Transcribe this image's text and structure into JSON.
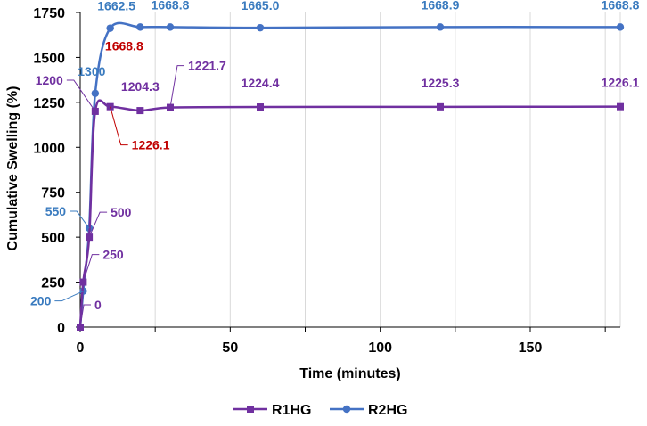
{
  "chart_data": {
    "type": "line",
    "title": "",
    "xlabel": "Time (minutes)",
    "ylabel": "Cumulative Swelling (%)",
    "xlim": [
      0,
      180
    ],
    "ylim": [
      0,
      1750
    ],
    "xticks": [
      0,
      50,
      100,
      150
    ],
    "xticks_minor": [
      25,
      75,
      125,
      175
    ],
    "yticks": [
      0,
      250,
      500,
      750,
      1000,
      1250,
      1500,
      1750
    ],
    "grid": "vertical",
    "legend_position": "bottom",
    "series": [
      {
        "name": "R1HG",
        "color": "#7030a0",
        "marker": "square",
        "x": [
          0,
          1,
          3,
          5,
          10,
          20,
          30,
          60,
          120,
          180
        ],
        "y": [
          0,
          250,
          500,
          1200,
          1226.1,
          1204.3,
          1221.7,
          1224.4,
          1225.3,
          1226.1
        ],
        "labels": [
          {
            "text": "0",
            "color": "#7030a0"
          },
          {
            "text": "250",
            "color": "#7030a0"
          },
          {
            "text": "500",
            "color": "#7030a0"
          },
          {
            "text": "1200",
            "color": "#7030a0"
          },
          {
            "text": "1226.1",
            "color": "#c00000"
          },
          {
            "text": "1204.3",
            "color": "#7030a0"
          },
          {
            "text": "1221.7",
            "color": "#7030a0"
          },
          {
            "text": "1224.4",
            "color": "#7030a0"
          },
          {
            "text": "1225.3",
            "color": "#7030a0"
          },
          {
            "text": "1226.1",
            "color": "#7030a0"
          }
        ]
      },
      {
        "name": "R2HG",
        "color": "#4472c4",
        "marker": "circle",
        "x": [
          0,
          1,
          3,
          5,
          10,
          20,
          30,
          60,
          120,
          180
        ],
        "y": [
          0,
          200,
          550,
          1300,
          1662.5,
          1668.8,
          1668.8,
          1665.0,
          1668.9,
          1668.8
        ],
        "labels": [
          {
            "text": "",
            "color": "#3a7bbf"
          },
          {
            "text": "200",
            "color": "#3a7bbf"
          },
          {
            "text": "550",
            "color": "#3a7bbf"
          },
          {
            "text": "1300",
            "color": "#3a7bbf"
          },
          {
            "text": "1662.5",
            "color": "#3a7bbf"
          },
          {
            "text": "1668.8",
            "color": "#c00000"
          },
          {
            "text": "1668.8",
            "color": "#3a7bbf"
          },
          {
            "text": "1665.0",
            "color": "#3a7bbf"
          },
          {
            "text": "1668.9",
            "color": "#3a7bbf"
          },
          {
            "text": "1668.8",
            "color": "#3a7bbf"
          }
        ]
      }
    ]
  }
}
